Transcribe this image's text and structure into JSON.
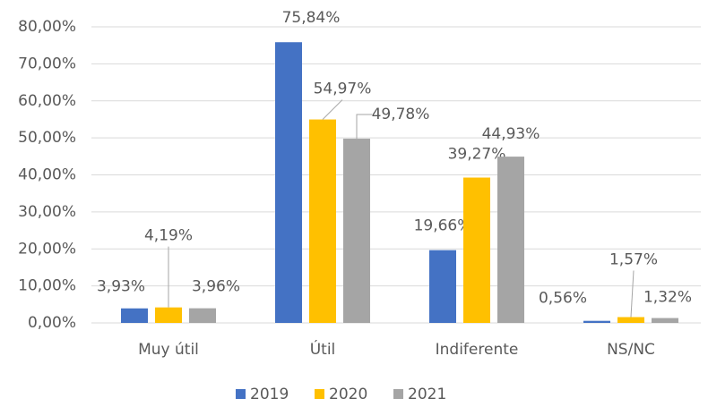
{
  "chart_data": {
    "type": "bar",
    "categories": [
      "Muy útil",
      "Útil",
      "Indiferente",
      "NS/NC"
    ],
    "series": [
      {
        "name": "2019",
        "color": "#4472c4",
        "values": [
          3.93,
          75.84,
          19.66,
          0.56
        ],
        "value_labels": [
          "3,93%",
          "75,84%",
          "19,66%",
          "0,56%"
        ]
      },
      {
        "name": "2020",
        "color": "#ffc000",
        "values": [
          4.19,
          54.97,
          39.27,
          1.57
        ],
        "value_labels": [
          "4,19%",
          "54,97%",
          "39,27%",
          "1,57%"
        ]
      },
      {
        "name": "2021",
        "color": "#a5a5a5",
        "values": [
          3.96,
          49.78,
          44.93,
          1.32
        ],
        "value_labels": [
          "3,96%",
          "49,78%",
          "44,93%",
          "1,32%"
        ]
      }
    ],
    "ylim": [
      0,
      80
    ],
    "yticks": [
      {
        "value": 0,
        "label": "0,00%"
      },
      {
        "value": 10,
        "label": "10,00%"
      },
      {
        "value": 20,
        "label": "20,00%"
      },
      {
        "value": 30,
        "label": "30,00%"
      },
      {
        "value": 40,
        "label": "40,00%"
      },
      {
        "value": 50,
        "label": "50,00%"
      },
      {
        "value": 60,
        "label": "60,00%"
      },
      {
        "value": 70,
        "label": "70,00%"
      },
      {
        "value": 80,
        "label": "80,00%"
      }
    ],
    "grid": true,
    "legend": "bottom"
  }
}
